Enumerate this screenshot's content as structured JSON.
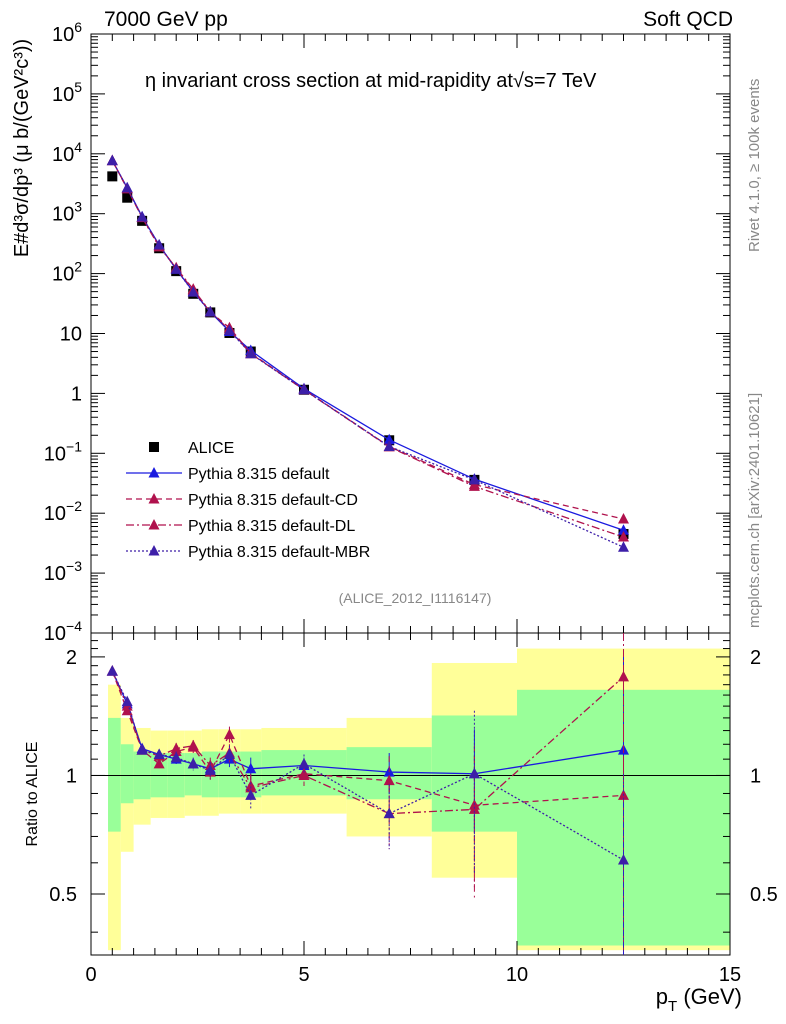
{
  "header": {
    "energy_label": "7000 GeV pp",
    "process_label": "Soft QCD"
  },
  "side_labels": {
    "rivet": "Rivet 4.1.0, ≥ 100k events",
    "mcplots": "mcplots.cern.ch [arXiv:2401.10621]"
  },
  "chart_data": [
    {
      "type": "scatter",
      "panel": "main",
      "title": "η invariant cross section at mid-rapidity at√s=7 TeV",
      "ylabel": "E#d³σ/dp³ (μ b/(GeV²c³))",
      "xlabel": "",
      "yscale": "log",
      "xlim": [
        0,
        15
      ],
      "ylim": [
        0.0001,
        1000000
      ],
      "y_ticks": [
        0.0001,
        0.001,
        0.01,
        0.1,
        1,
        10,
        100,
        1000,
        10000,
        100000,
        1000000
      ],
      "y_tick_labels": [
        {
          "base": "10",
          "exp": "−4"
        },
        {
          "base": "10",
          "exp": "−3"
        },
        {
          "base": "10",
          "exp": "−2"
        },
        {
          "base": "10",
          "exp": "−1"
        },
        {
          "base": "1",
          "exp": ""
        },
        {
          "base": "10",
          "exp": ""
        },
        {
          "base": "10",
          "exp": "2"
        },
        {
          "base": "10",
          "exp": "3"
        },
        {
          "base": "10",
          "exp": "4"
        },
        {
          "base": "10",
          "exp": "5"
        },
        {
          "base": "10",
          "exp": "6"
        }
      ],
      "watermark": "(ALICE_2012_I1116147)",
      "legend_position": "bottom-left",
      "x": [
        0.5,
        0.85,
        1.2,
        1.6,
        2.0,
        2.4,
        2.8,
        3.25,
        3.75,
        5.0,
        7.0,
        9.0,
        12.5
      ],
      "series": [
        {
          "name": "ALICE",
          "style": "data",
          "color": "#000000",
          "values": [
            4200,
            1850,
            760,
            265,
            110,
            46,
            22.5,
            10.2,
            5.0,
            1.15,
            0.165,
            0.036,
            0.0045
          ]
        },
        {
          "name": "Pythia 8.315 default",
          "style": "solid",
          "color": "#1a1adf",
          "values": [
            7700,
            2700,
            890,
            300,
            118,
            50,
            23,
            10.8,
            5.2,
            1.2,
            0.168,
            0.037,
            0.0052
          ]
        },
        {
          "name": "Pythia 8.315 default-CD",
          "style": "dashed",
          "color": "#b0124d",
          "values": [
            7700,
            2600,
            870,
            290,
            122,
            53,
            22.8,
            12.5,
            4.7,
            1.16,
            0.13,
            0.03,
            0.008
          ]
        },
        {
          "name": "Pythia 8.315 default-DL",
          "style": "dashdot",
          "color": "#b0124d",
          "values": [
            7700,
            2650,
            860,
            280,
            125,
            55,
            23,
            11.5,
            4.6,
            1.15,
            0.128,
            0.028,
            0.004
          ]
        },
        {
          "name": "Pythia 8.315 default-MBR",
          "style": "dotted",
          "color": "#3d1fa8",
          "values": [
            7700,
            2700,
            880,
            300,
            118,
            49,
            23,
            11.2,
            4.6,
            1.15,
            0.13,
            0.036,
            0.0027
          ]
        }
      ]
    },
    {
      "type": "scatter",
      "panel": "ratio",
      "ylabel": "Ratio to ALICE",
      "xlabel": "p_T (GeV)",
      "xlim": [
        0,
        15
      ],
      "ylim": [
        0.35,
        2.3
      ],
      "x_ticks": [
        0,
        5,
        10,
        15
      ],
      "y_ticks": [
        0.5,
        1,
        2
      ],
      "y_tick_labels": [
        "0.5",
        "1",
        "2"
      ],
      "x": [
        0.5,
        0.85,
        1.2,
        1.6,
        2.0,
        2.4,
        2.8,
        3.25,
        3.75,
        5.0,
        7.0,
        9.0,
        12.5
      ],
      "bands": {
        "edges": [
          0.4,
          0.7,
          1.0,
          1.4,
          1.8,
          2.2,
          2.6,
          3.0,
          3.5,
          4.0,
          6.0,
          8.0,
          10.0,
          15.0
        ],
        "green_low": [
          0.72,
          0.85,
          0.87,
          0.88,
          0.88,
          0.89,
          0.88,
          0.88,
          0.88,
          0.89,
          0.87,
          0.72,
          0.37
        ],
        "green_high": [
          1.4,
          1.2,
          1.15,
          1.14,
          1.14,
          1.14,
          1.15,
          1.15,
          1.15,
          1.16,
          1.18,
          1.42,
          1.65
        ],
        "yellow_low": [
          0.36,
          0.64,
          0.75,
          0.78,
          0.78,
          0.79,
          0.79,
          0.8,
          0.8,
          0.8,
          0.7,
          0.55,
          0.36
        ],
        "yellow_high": [
          1.7,
          1.4,
          1.32,
          1.3,
          1.3,
          1.3,
          1.31,
          1.31,
          1.31,
          1.32,
          1.4,
          1.93,
          2.1
        ]
      },
      "series": [
        {
          "name": "Pythia 8.315 default",
          "style": "solid",
          "color": "#1a1adf",
          "values": [
            1.84,
            1.52,
            1.17,
            1.13,
            1.1,
            1.07,
            1.04,
            1.1,
            1.04,
            1.06,
            1.02,
            1.01,
            1.16
          ],
          "errors": [
            0.02,
            0.03,
            0.03,
            0.03,
            0.03,
            0.03,
            0.05,
            0.05,
            0.07,
            0.05,
            0.12,
            0.3,
            0.9
          ]
        },
        {
          "name": "Pythia 8.315 default-CD",
          "style": "dashed",
          "color": "#b0124d",
          "values": [
            1.84,
            1.46,
            1.16,
            1.07,
            1.15,
            1.18,
            1.02,
            1.27,
            0.94,
            1.01,
            0.97,
            0.84,
            0.89
          ],
          "errors": [
            0.02,
            0.03,
            0.03,
            0.03,
            0.04,
            0.04,
            0.05,
            0.06,
            0.07,
            0.06,
            0.15,
            0.35,
            0.9
          ]
        },
        {
          "name": "Pythia 8.315 default-DL",
          "style": "dashdot",
          "color": "#b0124d",
          "values": [
            1.84,
            1.5,
            1.16,
            1.12,
            1.17,
            1.19,
            1.06,
            1.14,
            0.93,
            1.0,
            0.8,
            0.82,
            1.78
          ],
          "errors": [
            0.02,
            0.03,
            0.03,
            0.03,
            0.04,
            0.04,
            0.05,
            0.06,
            0.07,
            0.06,
            0.15,
            0.3,
            0.9
          ]
        },
        {
          "name": "Pythia 8.315 default-MBR",
          "style": "dotted",
          "color": "#3d1fa8",
          "values": [
            1.84,
            1.54,
            1.16,
            1.13,
            1.11,
            1.07,
            1.03,
            1.13,
            0.89,
            1.07,
            0.8,
            1.01,
            0.61
          ],
          "errors": [
            0.02,
            0.03,
            0.03,
            0.03,
            0.04,
            0.04,
            0.05,
            0.06,
            0.07,
            0.06,
            0.15,
            0.45,
            0.4
          ]
        }
      ]
    }
  ]
}
